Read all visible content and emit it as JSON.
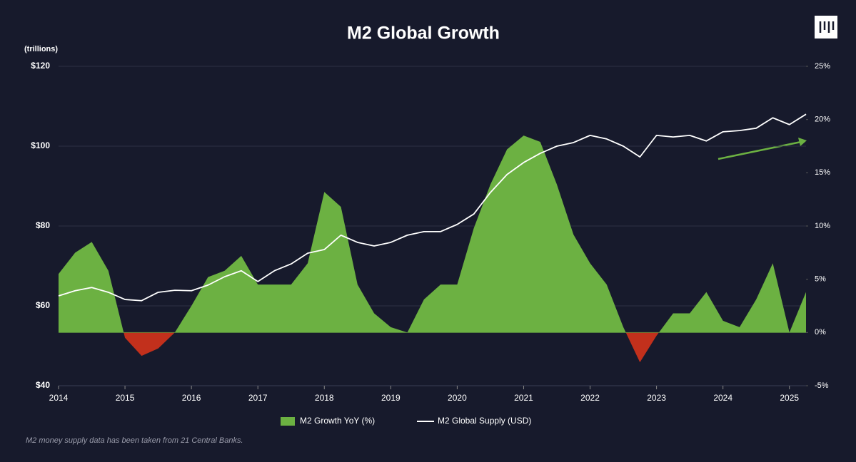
{
  "chart_data": {
    "type": "area-line",
    "title": "M2 Global Growth",
    "y_label": "(trillions)",
    "footnote": "M2 money supply data has been taken from 21 Central Banks.",
    "x": [
      2014,
      2014.25,
      2014.5,
      2014.75,
      2015,
      2015.25,
      2015.5,
      2015.75,
      2016,
      2016.25,
      2016.5,
      2016.75,
      2017,
      2017.25,
      2017.5,
      2017.75,
      2018,
      2018.25,
      2018.5,
      2018.75,
      2019,
      2019.25,
      2019.5,
      2019.75,
      2020,
      2020.25,
      2020.5,
      2020.75,
      2021,
      2021.25,
      2021.5,
      2021.75,
      2022,
      2022.25,
      2022.5,
      2022.75,
      2023,
      2023.25,
      2023.5,
      2023.75,
      2024,
      2024.25,
      2024.5,
      2024.75,
      2025,
      2025.25
    ],
    "series": [
      {
        "name": "M2 Growth YoY (%)",
        "axis": "y2",
        "kind": "area",
        "color": "#6cb142",
        "negative_color": "#c2301c",
        "values": [
          5.5,
          7.5,
          8.5,
          5.8,
          -0.5,
          -2.2,
          -1.5,
          0,
          2.5,
          5.2,
          5.8,
          7.2,
          4.5,
          4.5,
          4.5,
          6.5,
          13.2,
          11.8,
          4.5,
          1.8,
          0.5,
          0,
          3.1,
          4.5,
          4.5,
          9.8,
          13.9,
          17.2,
          18.5,
          17.9,
          13.9,
          9.2,
          6.5,
          4.5,
          0.5,
          -2.8,
          -0.3,
          1.8,
          1.8,
          3.8,
          1.1,
          0.5,
          3.1,
          6.5,
          0,
          3.8
        ]
      },
      {
        "name": "M2 Global Supply (USD)",
        "axis": "y",
        "kind": "line",
        "color": "#ffffff",
        "values": [
          62.5,
          63.8,
          64.6,
          63.4,
          61.6,
          61.3,
          63.4,
          63.9,
          63.8,
          65.2,
          67.3,
          68.8,
          66.1,
          68.8,
          70.5,
          73.2,
          74.1,
          77.7,
          75.9,
          75.0,
          75.9,
          77.7,
          78.6,
          78.6,
          80.4,
          83.0,
          88.4,
          92.9,
          95.9,
          98.2,
          100.0,
          100.9,
          102.7,
          101.8,
          100.0,
          97.3,
          102.7,
          102.3,
          102.7,
          101.3,
          103.6,
          103.9,
          104.5,
          107.1,
          105.4,
          108.0
        ]
      }
    ],
    "xlim": [
      2014,
      2025.25
    ],
    "xticks": [
      2014,
      2015,
      2016,
      2017,
      2018,
      2019,
      2020,
      2021,
      2022,
      2023,
      2024,
      2025
    ],
    "ylim": [
      40,
      120
    ],
    "yticks": [
      {
        "value": 40,
        "label": "$40"
      },
      {
        "value": 60,
        "label": "$60"
      },
      {
        "value": 80,
        "label": "$80"
      },
      {
        "value": 100,
        "label": "$100"
      },
      {
        "value": 120,
        "label": "$120"
      }
    ],
    "y2lim": [
      -5,
      25
    ],
    "y2ticks": [
      {
        "value": -5,
        "label": "-5%"
      },
      {
        "value": 0,
        "label": "0%"
      },
      {
        "value": 5,
        "label": "5%"
      },
      {
        "value": 10,
        "label": "10%"
      },
      {
        "value": 15,
        "label": "15%"
      },
      {
        "value": 20,
        "label": "20%"
      },
      {
        "value": 25,
        "label": "25%"
      }
    ],
    "grid": true
  }
}
